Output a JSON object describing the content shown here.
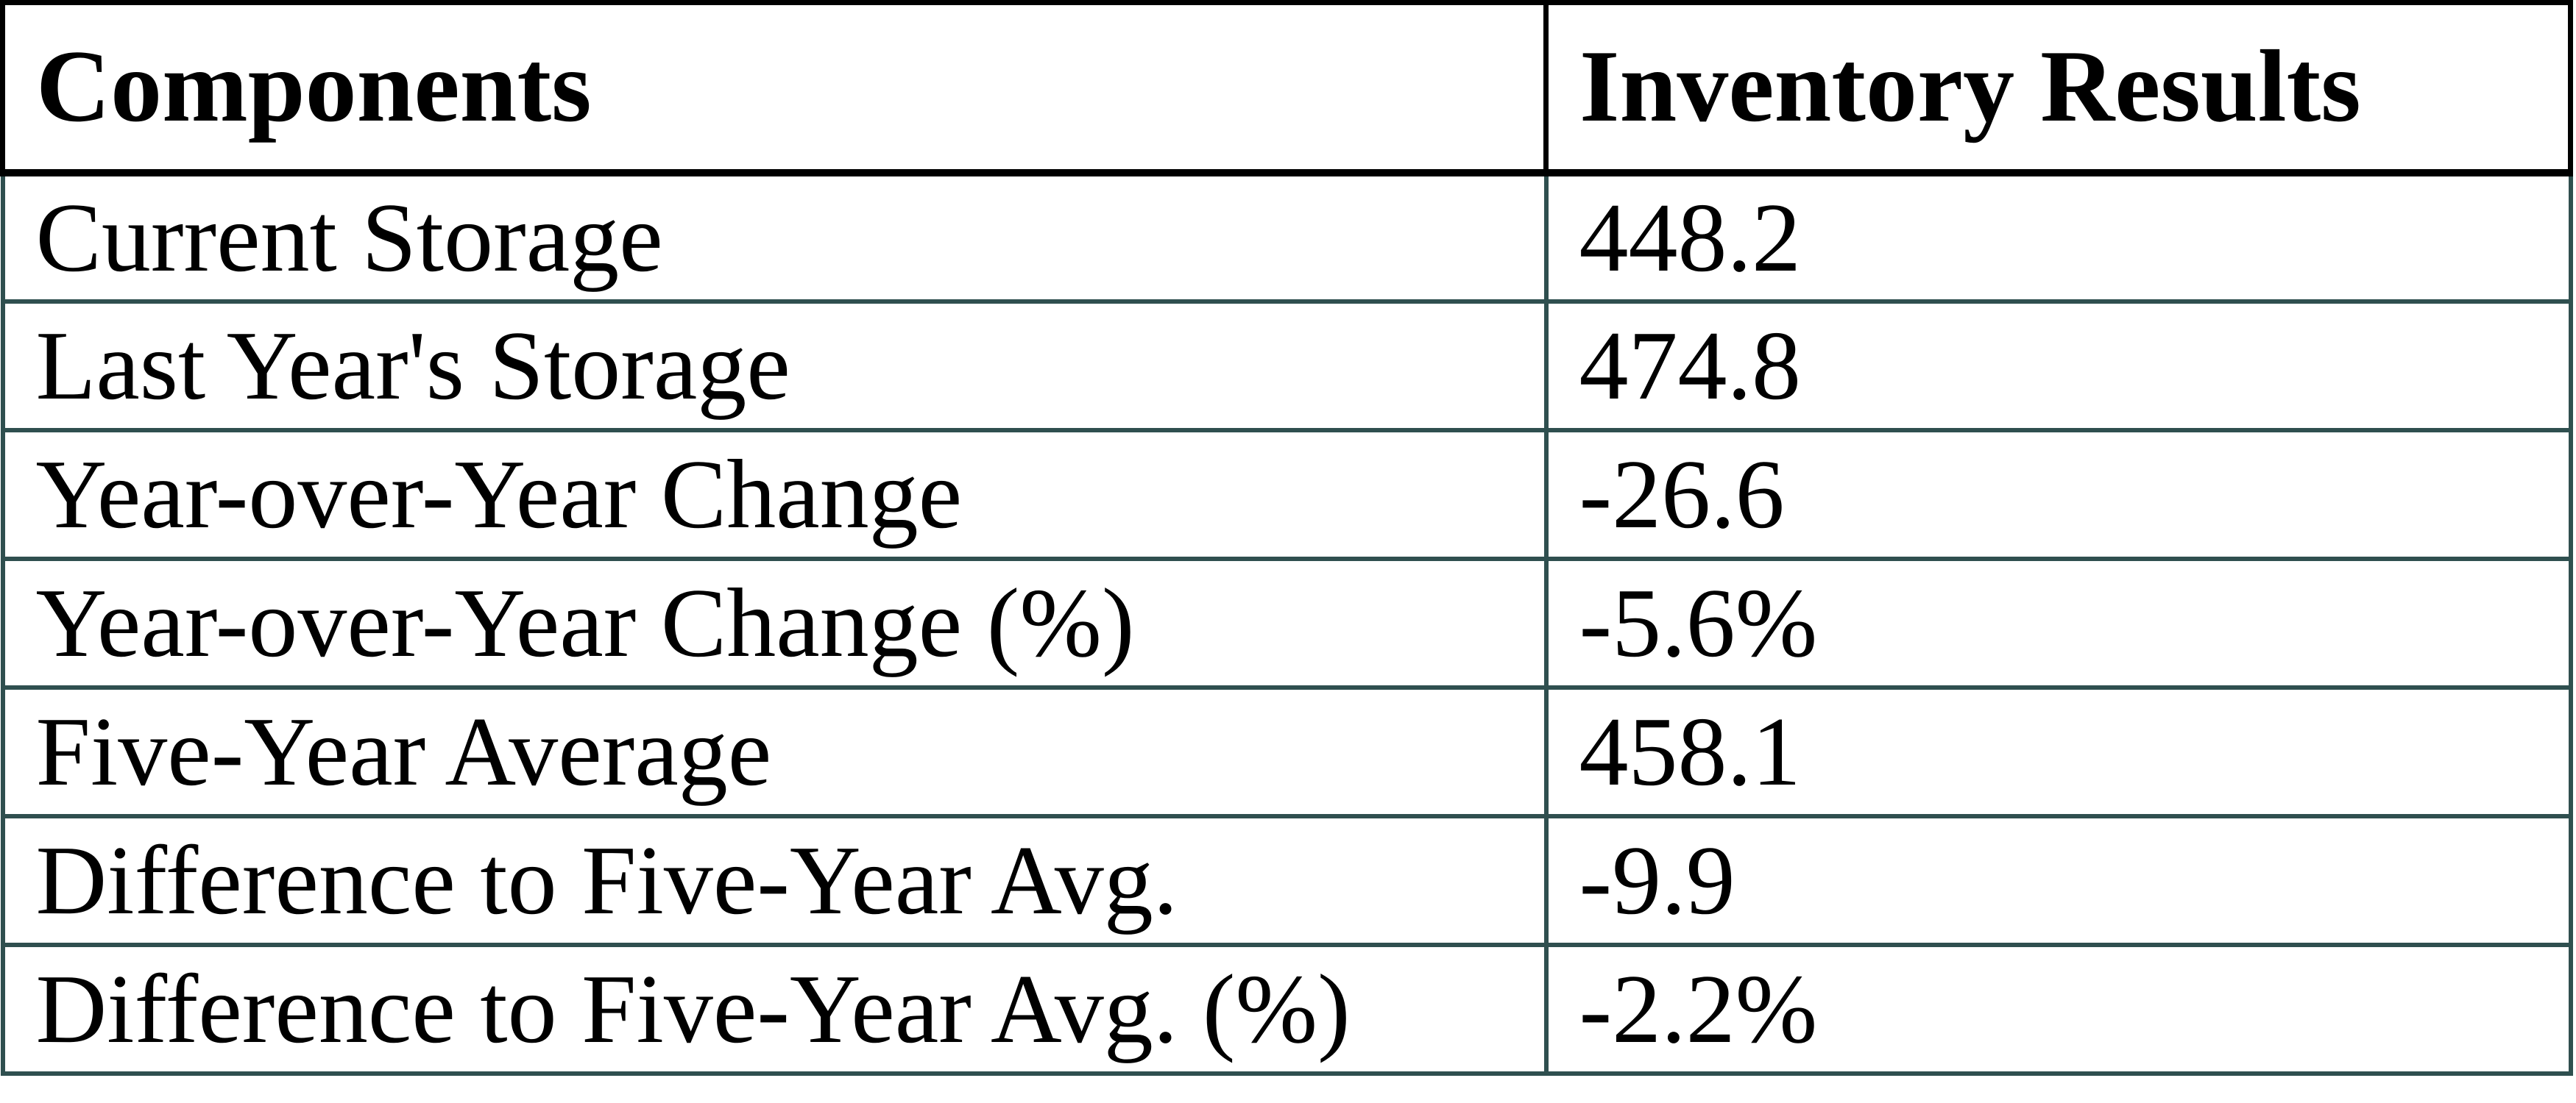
{
  "chart_data": {
    "type": "table",
    "title": "",
    "columns": [
      "Components",
      "Inventory Results"
    ],
    "rows": [
      {
        "component": "Current Storage",
        "result": "448.2"
      },
      {
        "component": "Last Year's Storage",
        "result": "474.8"
      },
      {
        "component": "Year-over-Year Change",
        "result": "-26.6"
      },
      {
        "component": "Year-over-Year Change (%)",
        "result": "-5.6%"
      },
      {
        "component": "Five-Year Average",
        "result": "458.1"
      },
      {
        "component": "Difference to Five-Year Avg.",
        "result": "-9.9"
      },
      {
        "component": "Difference to Five-Year Avg. (%)",
        "result": "-2.2%"
      }
    ],
    "layout": {
      "header_bold": true,
      "grid": "all-cell-borders"
    }
  },
  "colors": {
    "header_border": "#000000",
    "body_border": "#2f4f4f",
    "text": "#000000",
    "background": "#ffffff"
  }
}
